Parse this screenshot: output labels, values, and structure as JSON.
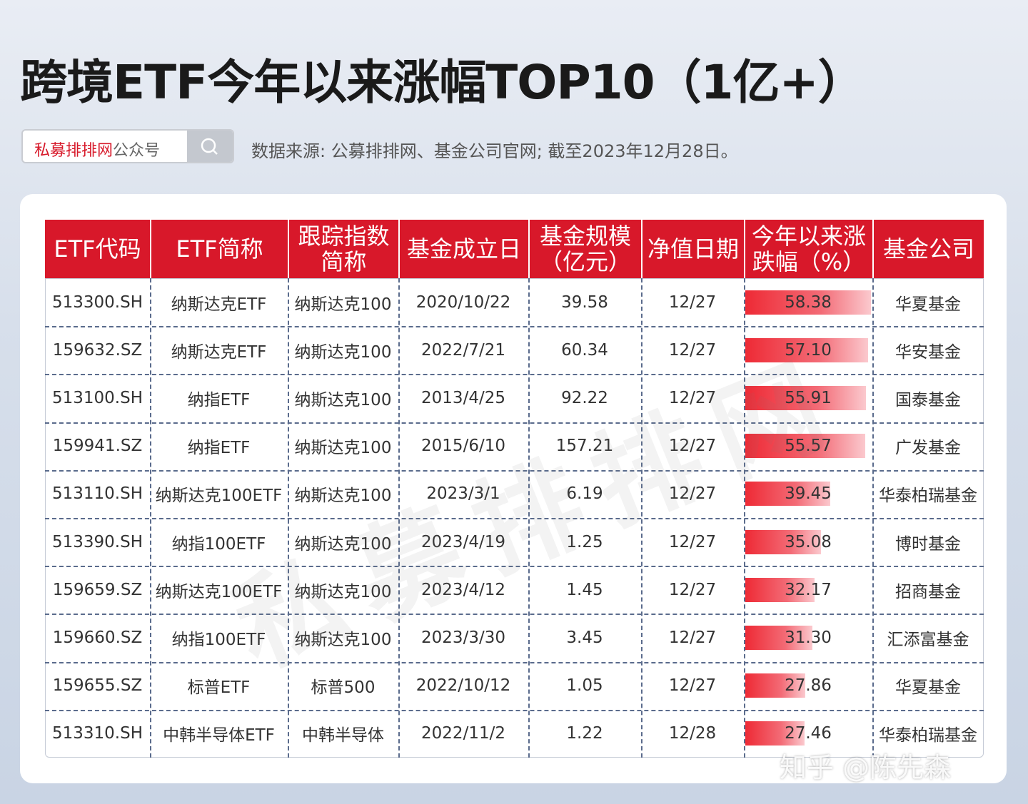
{
  "header": {
    "title": "跨境ETF今年以来涨幅TOP10（1亿+）",
    "search_brand": "私募排排网",
    "search_suffix": "公众号",
    "source": "数据来源: 公募排排网、基金公司官网; 截至2023年12月28日。"
  },
  "table": {
    "headers": [
      "ETF代码",
      "ETF简称",
      "跟踪指数简称",
      "基金成立日",
      "基金规模（亿元）",
      "净值日期",
      "今年以来涨跌幅（%）",
      "基金公司"
    ],
    "rows": [
      [
        "513300.SH",
        "纳斯达克ETF",
        "纳斯达克100",
        "2020/10/22",
        "39.58",
        "12/27",
        "58.38",
        "华夏基金"
      ],
      [
        "159632.SZ",
        "纳斯达克ETF",
        "纳斯达克100",
        "2022/7/21",
        "60.34",
        "12/27",
        "57.10",
        "华安基金"
      ],
      [
        "513100.SH",
        "纳指ETF",
        "纳斯达克100",
        "2013/4/25",
        "92.22",
        "12/27",
        "55.91",
        "国泰基金"
      ],
      [
        "159941.SZ",
        "纳指ETF",
        "纳斯达克100",
        "2015/6/10",
        "157.21",
        "12/27",
        "55.57",
        "广发基金"
      ],
      [
        "513110.SH",
        "纳斯达克100ETF",
        "纳斯达克100",
        "2023/3/1",
        "6.19",
        "12/27",
        "39.45",
        "华泰柏瑞基金"
      ],
      [
        "513390.SH",
        "纳指100ETF",
        "纳斯达克100",
        "2023/4/19",
        "1.25",
        "12/27",
        "35.08",
        "博时基金"
      ],
      [
        "159659.SZ",
        "纳斯达克100ETF",
        "纳斯达克100",
        "2023/4/12",
        "1.45",
        "12/27",
        "32.17",
        "招商基金"
      ],
      [
        "159660.SZ",
        "纳指100ETF",
        "纳斯达克100",
        "2023/3/30",
        "3.45",
        "12/27",
        "31.30",
        "汇添富基金"
      ],
      [
        "159655.SZ",
        "标普ETF",
        "标普500",
        "2022/10/12",
        "1.05",
        "12/27",
        "27.86",
        "华夏基金"
      ],
      [
        "513310.SH",
        "中韩半导体ETF",
        "中韩半导体",
        "2022/11/2",
        "1.22",
        "12/28",
        "27.46",
        "华泰柏瑞基金"
      ]
    ]
  },
  "watermark": "私募排排网",
  "credit": "知乎 @陈先森"
}
